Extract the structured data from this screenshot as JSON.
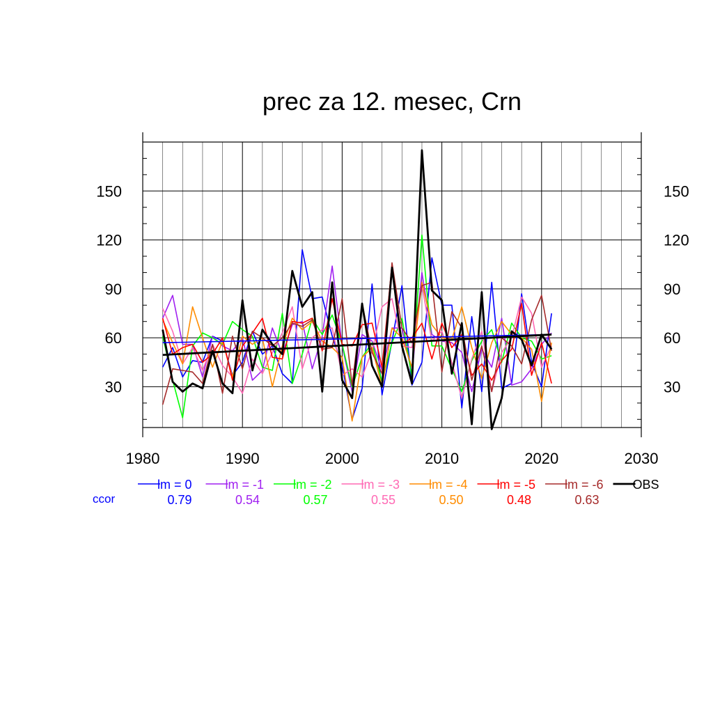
{
  "chart_data": {
    "type": "line",
    "title": "prec za 12. mesec, Crn",
    "xlabel": "",
    "ylabel": "",
    "xlim": [
      1980,
      2030
    ],
    "ylim": [
      5,
      180
    ],
    "x_ticks": [
      1980,
      1990,
      2000,
      2010,
      2020,
      2030
    ],
    "y_ticks": [
      30,
      60,
      90,
      120,
      150
    ],
    "grid": true,
    "legend_position": "bottom",
    "ccor_label": "ccor",
    "x": [
      1982,
      1983,
      1984,
      1985,
      1986,
      1987,
      1988,
      1989,
      1990,
      1991,
      1992,
      1993,
      1994,
      1995,
      1996,
      1997,
      1998,
      1999,
      2000,
      2001,
      2002,
      2003,
      2004,
      2005,
      2006,
      2007,
      2008,
      2009,
      2010,
      2011,
      2012,
      2013,
      2014,
      2015,
      2016,
      2017,
      2018,
      2019,
      2020,
      2021
    ],
    "series": [
      {
        "name": "lm = 0",
        "color": "#0000ff",
        "width": 1.6,
        "ccor": "0.79",
        "values": [
          42,
          54,
          36,
          46,
          45,
          61,
          58,
          37,
          45,
          64,
          50,
          55,
          38,
          32,
          114,
          84,
          85,
          61,
          43,
          10,
          29,
          93,
          25,
          58,
          92,
          31,
          45,
          109,
          80,
          80,
          17,
          73,
          27,
          94,
          29,
          32,
          87,
          45,
          30,
          75
        ]
      },
      {
        "name": "lm = -1",
        "color": "#a020f0",
        "width": 1.6,
        "ccor": "0.54",
        "values": [
          72,
          86,
          56,
          56,
          36,
          61,
          55,
          52,
          60,
          34,
          40,
          66,
          50,
          68,
          70,
          41,
          61,
          104,
          55,
          27,
          62,
          58,
          40,
          66,
          66,
          38,
          100,
          62,
          58,
          57,
          51,
          27,
          53,
          42,
          72,
          31,
          33,
          41,
          56,
          63
        ]
      },
      {
        "name": "lm = -2",
        "color": "#00ff00",
        "width": 1.6,
        "ccor": "0.57",
        "values": [
          61,
          34,
          11,
          55,
          63,
          60,
          56,
          70,
          65,
          61,
          42,
          40,
          75,
          32,
          50,
          72,
          62,
          74,
          56,
          30,
          48,
          57,
          33,
          57,
          72,
          36,
          123,
          55,
          55,
          41,
          27,
          46,
          58,
          65,
          45,
          69,
          60,
          58,
          47,
          49
        ]
      },
      {
        "name": "lm = -3",
        "color": "#ff69b4",
        "width": 1.6,
        "ccor": "0.55",
        "values": [
          78,
          64,
          44,
          54,
          40,
          56,
          43,
          36,
          26,
          47,
          38,
          51,
          63,
          79,
          41,
          60,
          65,
          66,
          37,
          41,
          36,
          52,
          79,
          84,
          55,
          54,
          92,
          58,
          64,
          45,
          23,
          47,
          64,
          27,
          51,
          60,
          85,
          75,
          42,
          55
        ]
      },
      {
        "name": "lm = -4",
        "color": "#ff8c00",
        "width": 1.6,
        "ccor": "0.50",
        "values": [
          71,
          57,
          44,
          79,
          60,
          42,
          58,
          36,
          61,
          56,
          60,
          30,
          55,
          72,
          65,
          70,
          58,
          54,
          48,
          9,
          48,
          54,
          30,
          66,
          60,
          42,
          94,
          68,
          60,
          59,
          79,
          54,
          35,
          57,
          70,
          62,
          60,
          53,
          21,
          57
        ]
      },
      {
        "name": "lm = -5",
        "color": "#ff0000",
        "width": 1.6,
        "ccor": "0.48",
        "values": [
          72,
          50,
          54,
          56,
          45,
          50,
          60,
          34,
          55,
          63,
          72,
          48,
          47,
          70,
          69,
          72,
          52,
          84,
          56,
          55,
          68,
          69,
          42,
          105,
          56,
          60,
          69,
          47,
          69,
          54,
          62,
          37,
          44,
          34,
          46,
          53,
          81,
          37,
          57,
          32
        ]
      },
      {
        "name": "lm = -6",
        "color": "#a52a2a",
        "width": 1.6,
        "ccor": "0.63",
        "values": [
          19,
          41,
          40,
          39,
          32,
          56,
          26,
          61,
          41,
          64,
          60,
          55,
          60,
          69,
          67,
          71,
          53,
          54,
          84,
          31,
          81,
          51,
          38,
          106,
          66,
          57,
          92,
          94,
          39,
          76,
          66,
          34,
          55,
          27,
          60,
          55,
          44,
          71,
          86,
          52
        ]
      },
      {
        "name": "OBS",
        "color": "#000000",
        "width": 2.8,
        "values": [
          65,
          33,
          27,
          32,
          29,
          52,
          32,
          26,
          83,
          40,
          65,
          56,
          50,
          101,
          79,
          88,
          27,
          94,
          34,
          23,
          81,
          43,
          30,
          103,
          55,
          32,
          175,
          89,
          83,
          38,
          69,
          7,
          88,
          4,
          23,
          64,
          59,
          43,
          62,
          53
        ]
      }
    ],
    "trend_lines": [
      {
        "name": "lm = 0",
        "color": "#0000ff",
        "width": 1.6,
        "x": [
          1982,
          2021
        ],
        "values": [
          57,
          62
        ]
      },
      {
        "name": "OBS",
        "color": "#000000",
        "width": 2.8,
        "x": [
          1982,
          2021
        ],
        "values": [
          49.5,
          62
        ]
      }
    ]
  }
}
